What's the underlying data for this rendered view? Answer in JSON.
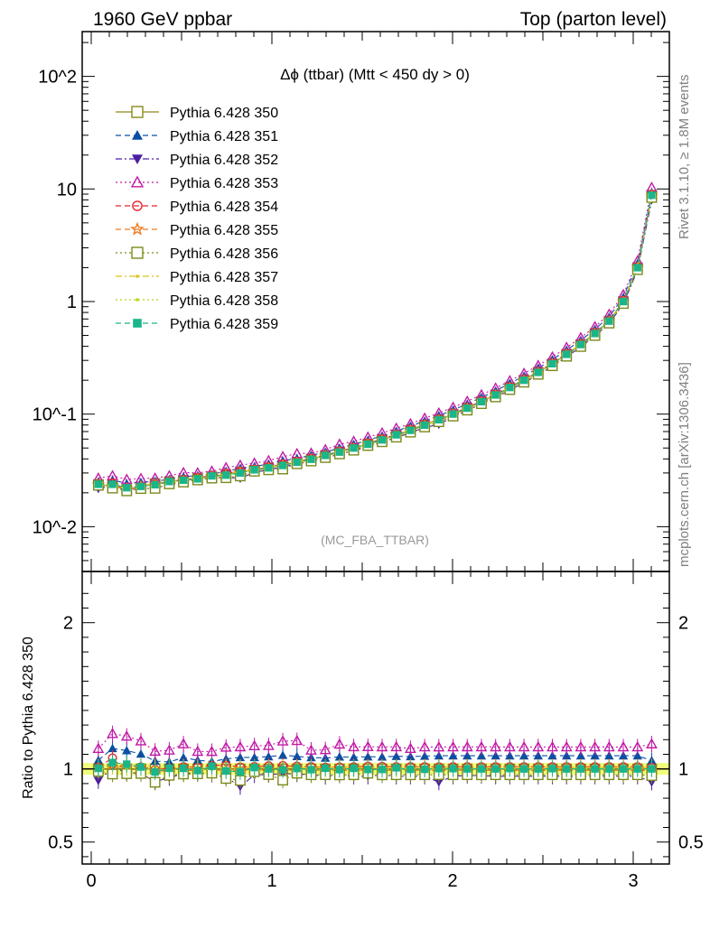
{
  "header": {
    "left": "1960 GeV ppbar",
    "right": "Top (parton level)"
  },
  "side_labels": {
    "rivet": "Rivet 3.1.10, ≥ 1.8M events",
    "mcplots": "mcplots.cern.ch [arXiv:1306.3436]"
  },
  "chart_data": [
    {
      "type": "line",
      "panel": "main",
      "title": "Δϕ (ttbar) (Mtt < 450 dy > 0)",
      "watermark": "(MC_FBA_TTBAR)",
      "xlabel": "",
      "ylabel": "",
      "xlim": [
        -0.05,
        3.2
      ],
      "ylim": [
        0.004,
        250
      ],
      "yscale": "log",
      "xticks": [
        "0",
        "1",
        "2",
        "3"
      ],
      "yticks": [
        "10^-2",
        "10^-1",
        "1",
        "10",
        "10^2"
      ],
      "legend_position": "top-left",
      "x": [
        0.0393,
        0.1178,
        0.1963,
        0.2749,
        0.3534,
        0.432,
        0.5105,
        0.589,
        0.6676,
        0.7461,
        0.8247,
        0.9032,
        0.9817,
        1.0603,
        1.1388,
        1.2174,
        1.2959,
        1.3744,
        1.453,
        1.5315,
        1.6101,
        1.6886,
        1.7671,
        1.8457,
        1.9242,
        2.0028,
        2.0813,
        2.1598,
        2.2384,
        2.3169,
        2.3955,
        2.474,
        2.5525,
        2.6311,
        2.7096,
        2.7882,
        2.8667,
        2.9452,
        3.0238,
        3.1023
      ],
      "series": [
        {
          "name": "Pythia 6.428 350",
          "color": "#8a8a1a",
          "marker": "square-open",
          "dash": "solid",
          "values": [
            0.0237,
            0.0228,
            0.0215,
            0.0225,
            0.0241,
            0.0251,
            0.0258,
            0.0269,
            0.0278,
            0.0291,
            0.0306,
            0.0317,
            0.0333,
            0.0352,
            0.0373,
            0.0399,
            0.0428,
            0.0462,
            0.0498,
            0.0542,
            0.0592,
            0.065,
            0.072,
            0.08,
            0.089,
            0.1,
            0.113,
            0.129,
            0.148,
            0.172,
            0.2,
            0.235,
            0.28,
            0.34,
            0.415,
            0.52,
            0.67,
            1.0,
            2.0,
            8.8
          ]
        },
        {
          "name": "Pythia 6.428 351",
          "color": "#0b4fa3",
          "marker": "triangle-up",
          "dash": "dashed",
          "values": [
            0.0251,
            0.026,
            0.0242,
            0.0248,
            0.0254,
            0.0263,
            0.0278,
            0.0285,
            0.0292,
            0.0311,
            0.033,
            0.0342,
            0.0361,
            0.0385,
            0.0405,
            0.043,
            0.046,
            0.05,
            0.0538,
            0.0587,
            0.0641,
            0.0706,
            0.0781,
            0.087,
            0.097,
            0.109,
            0.1232,
            0.1406,
            0.1613,
            0.1875,
            0.218,
            0.2562,
            0.3052,
            0.3706,
            0.4524,
            0.5668,
            0.7303,
            1.09,
            2.18,
            9.3
          ]
        },
        {
          "name": "Pythia 6.428 352",
          "color": "#4b1fa0",
          "marker": "triangle-down",
          "dash": "dashdot",
          "values": [
            0.0218,
            0.023,
            0.021,
            0.0218,
            0.022,
            0.0236,
            0.025,
            0.0262,
            0.0268,
            0.0275,
            0.0269,
            0.0304,
            0.032,
            0.0341,
            0.036,
            0.0383,
            0.0406,
            0.0443,
            0.0473,
            0.0515,
            0.0568,
            0.0617,
            0.0684,
            0.076,
            0.081,
            0.095,
            0.108,
            0.123,
            0.1406,
            0.1634,
            0.19,
            0.2233,
            0.266,
            0.323,
            0.3943,
            0.494,
            0.6365,
            0.95,
            1.9,
            8.0
          ]
        },
        {
          "name": "Pythia 6.428 353",
          "color": "#c21aa6",
          "marker": "triangle-open",
          "dash": "dotted",
          "values": [
            0.027,
            0.0283,
            0.0263,
            0.0268,
            0.027,
            0.0283,
            0.0302,
            0.0301,
            0.0311,
            0.0334,
            0.0352,
            0.0367,
            0.0386,
            0.0419,
            0.0445,
            0.045,
            0.0484,
            0.054,
            0.0573,
            0.0624,
            0.0681,
            0.0748,
            0.082,
            0.092,
            0.1023,
            0.115,
            0.13,
            0.1484,
            0.1702,
            0.1978,
            0.23,
            0.2703,
            0.322,
            0.391,
            0.4773,
            0.598,
            0.7705,
            1.15,
            2.3,
            10.3
          ]
        },
        {
          "name": "Pythia 6.428 354",
          "color": "#e8262b",
          "marker": "circle-open",
          "dash": "dashed",
          "values": [
            0.024,
            0.0245,
            0.021,
            0.0228,
            0.024,
            0.0252,
            0.0262,
            0.0272,
            0.0285,
            0.0298,
            0.031,
            0.0322,
            0.034,
            0.036,
            0.038,
            0.0405,
            0.0433,
            0.0468,
            0.0505,
            0.0552,
            0.0602,
            0.066,
            0.0731,
            0.0812,
            0.0903,
            0.1015,
            0.1147,
            0.1309,
            0.1502,
            0.1746,
            0.203,
            0.2385,
            0.2842,
            0.3451,
            0.4212,
            0.5278,
            0.6801,
            1.015,
            2.03,
            8.9
          ]
        },
        {
          "name": "Pythia 6.428 355",
          "color": "#f07a1e",
          "marker": "star-open",
          "dash": "dashed",
          "values": [
            0.0235,
            0.023,
            0.0218,
            0.0228,
            0.0238,
            0.0247,
            0.0255,
            0.0266,
            0.0276,
            0.0288,
            0.0303,
            0.0315,
            0.033,
            0.035,
            0.0369,
            0.0395,
            0.0424,
            0.0457,
            0.0493,
            0.0537,
            0.0586,
            0.0644,
            0.0713,
            0.0792,
            0.0881,
            0.099,
            0.1119,
            0.1277,
            0.1465,
            0.1703,
            0.198,
            0.2327,
            0.2772,
            0.3366,
            0.4109,
            0.5148,
            0.6633,
            0.99,
            1.98,
            8.7
          ]
        },
        {
          "name": "Pythia 6.428 356",
          "color": "#7c8a1a",
          "marker": "square-open",
          "dash": "dotted",
          "values": [
            0.0233,
            0.022,
            0.0208,
            0.0218,
            0.0219,
            0.024,
            0.0249,
            0.026,
            0.027,
            0.0272,
            0.0282,
            0.0311,
            0.032,
            0.0325,
            0.0362,
            0.0383,
            0.0411,
            0.0443,
            0.0478,
            0.0526,
            0.0568,
            0.0624,
            0.0691,
            0.0768,
            0.0855,
            0.096,
            0.1085,
            0.1238,
            0.1421,
            0.1651,
            0.192,
            0.2256,
            0.2688,
            0.3264,
            0.3984,
            0.4992,
            0.6432,
            0.96,
            1.92,
            8.4
          ]
        },
        {
          "name": "Pythia 6.428 357",
          "color": "#d9c21a",
          "marker": "dot",
          "dash": "dashdot",
          "values": [
            0.024,
            0.0236,
            0.022,
            0.023,
            0.0244,
            0.0254,
            0.0261,
            0.0272,
            0.0281,
            0.0294,
            0.0309,
            0.032,
            0.0336,
            0.0355,
            0.0377,
            0.0403,
            0.0432,
            0.0467,
            0.0503,
            0.0547,
            0.0598,
            0.0656,
            0.0727,
            0.0808,
            0.0899,
            0.101,
            0.1141,
            0.1303,
            0.1495,
            0.1737,
            0.202,
            0.2374,
            0.2828,
            0.3434,
            0.4192,
            0.5252,
            0.6767,
            1.01,
            2.02,
            8.9
          ]
        },
        {
          "name": "Pythia 6.428 358",
          "color": "#b5d61a",
          "marker": "dot",
          "dash": "dotted",
          "values": [
            0.0236,
            0.0232,
            0.0216,
            0.0226,
            0.024,
            0.025,
            0.0257,
            0.0268,
            0.0277,
            0.029,
            0.0305,
            0.0316,
            0.0332,
            0.0351,
            0.0372,
            0.0398,
            0.0427,
            0.0461,
            0.0497,
            0.0541,
            0.0591,
            0.0649,
            0.0719,
            0.0799,
            0.0889,
            0.0999,
            0.1129,
            0.1289,
            0.1479,
            0.1719,
            0.1999,
            0.2349,
            0.2799,
            0.3399,
            0.4149,
            0.5199,
            0.6699,
            1.0,
            2.0,
            8.8
          ]
        },
        {
          "name": "Pythia 6.428 359",
          "color": "#1ab58a",
          "marker": "square",
          "dash": "dashed",
          "values": [
            0.0238,
            0.0238,
            0.0222,
            0.0228,
            0.0236,
            0.0252,
            0.0259,
            0.0266,
            0.0283,
            0.0287,
            0.03,
            0.032,
            0.0333,
            0.035,
            0.0374,
            0.0397,
            0.043,
            0.046,
            0.05,
            0.054,
            0.059,
            0.0655,
            0.0718,
            0.0798,
            0.0892,
            0.1002,
            0.113,
            0.129,
            0.148,
            0.1725,
            0.2,
            0.235,
            0.2805,
            0.34,
            0.415,
            0.52,
            0.67,
            1.0,
            2.0,
            8.8
          ]
        }
      ]
    },
    {
      "type": "line",
      "panel": "ratio",
      "title": "",
      "xlabel": "",
      "ylabel": "Ratio to Pythia 6.428 350",
      "xlim": [
        -0.05,
        3.2
      ],
      "ylim": [
        0.35,
        2.35
      ],
      "xticks": [
        "0",
        "1",
        "2",
        "3"
      ],
      "yticks": [
        "0.5",
        "1",
        "2"
      ],
      "reference_band_color": "#e8ff33",
      "ratio_of": "chart_data.0.series / chart_data.0.series.0"
    }
  ]
}
